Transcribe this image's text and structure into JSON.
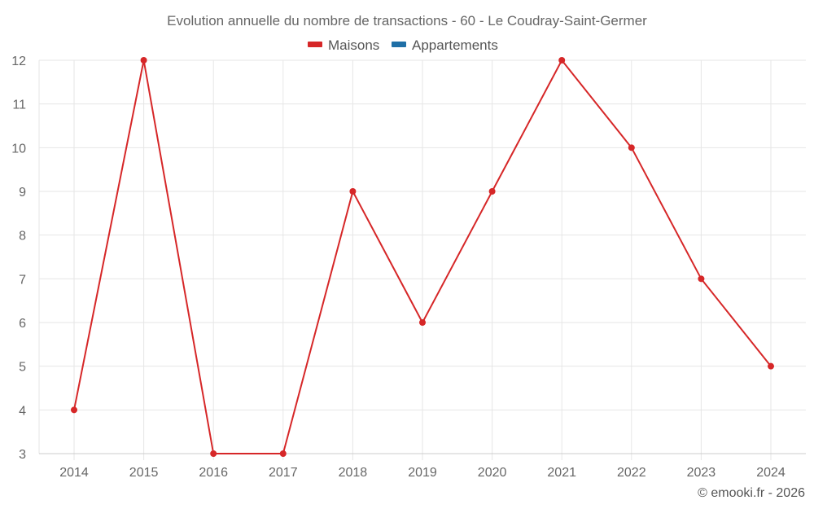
{
  "chart_data": {
    "type": "line",
    "title": "Evolution annuelle du nombre de transactions - 60 - Le Coudray-Saint-Germer",
    "xlabel": "",
    "ylabel": "",
    "categories": [
      "2014",
      "2015",
      "2016",
      "2017",
      "2018",
      "2019",
      "2020",
      "2021",
      "2022",
      "2023",
      "2024"
    ],
    "series": [
      {
        "name": "Maisons",
        "color": "#d62728",
        "values": [
          4,
          12,
          3,
          3,
          9,
          6,
          9,
          12,
          10,
          7,
          5
        ]
      },
      {
        "name": "Appartements",
        "color": "#1f6fa6",
        "values": []
      }
    ],
    "ylim": [
      3,
      12
    ],
    "yticks": [
      3,
      4,
      5,
      6,
      7,
      8,
      9,
      10,
      11,
      12
    ],
    "grid": true,
    "legend_position": "top"
  },
  "credit": "© emooki.fr - 2026",
  "colors": {
    "grid": "#e6e6e6",
    "axis": "#cccccc",
    "text": "#666666"
  }
}
